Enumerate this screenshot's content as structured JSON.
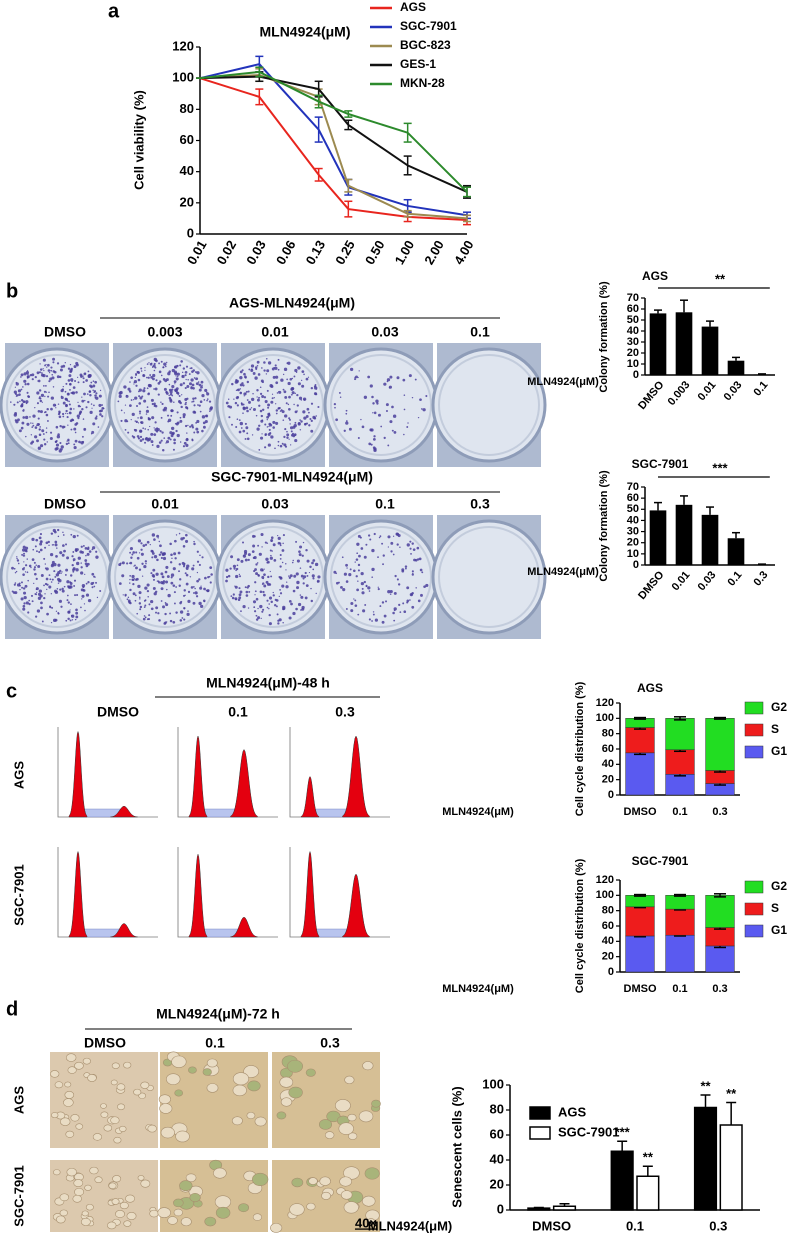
{
  "panel_labels": [
    "a",
    "b",
    "c",
    "d"
  ],
  "colony_assay": [
    {
      "title": "AGS-MLN4924(μM)",
      "doses": [
        "DMSO",
        "0.003",
        "0.01",
        "0.03",
        "0.1"
      ]
    },
    {
      "title": "SGC-7901-MLN4924(μM)",
      "doses": [
        "DMSO",
        "0.01",
        "0.03",
        "0.1",
        "0.3"
      ]
    }
  ],
  "flow_cytometry": {
    "title": "MLN4924(μM)-48 h",
    "doses": [
      "DMSO",
      "0.1",
      "0.3"
    ],
    "cell_lines": [
      "AGS",
      "SGC-7901"
    ]
  },
  "senescence_images": {
    "title": "MLN4924(μM)-72 h",
    "doses": [
      "DMSO",
      "0.1",
      "0.3"
    ],
    "cell_lines": [
      "AGS",
      "SGC-7901"
    ],
    "magnification": "40×"
  },
  "chart_data": [
    {
      "type": "line",
      "title": "MLN4924(μM)",
      "y_label": "Cell viability (%)",
      "categories": [
        "0.01",
        "0.02",
        "0.03",
        "0.06",
        "0.13",
        "0.25",
        "0.50",
        "1.00",
        "2.00",
        "4.00"
      ],
      "ylim": [
        0,
        120
      ],
      "yticks": [
        0,
        20,
        40,
        60,
        80,
        100,
        120
      ],
      "series": [
        {
          "name": "AGS",
          "color": "#e8251e",
          "x": [
            "0.01",
            "0.03",
            "0.13",
            "0.25",
            "1.00",
            "4.00"
          ],
          "values": [
            100,
            88,
            38,
            16,
            11,
            9
          ],
          "errors": [
            0,
            5,
            4,
            5,
            3,
            3
          ]
        },
        {
          "name": "SGC-7901",
          "color": "#2233bb",
          "x": [
            "0.01",
            "0.03",
            "0.13",
            "0.25",
            "1.00",
            "4.00"
          ],
          "values": [
            100,
            109,
            67,
            30,
            18,
            12
          ],
          "errors": [
            0,
            5,
            8,
            5,
            4,
            2
          ]
        },
        {
          "name": "BGC-823",
          "color": "#9c8a50",
          "x": [
            "0.01",
            "0.03",
            "0.13",
            "0.25",
            "1.00",
            "4.00"
          ],
          "values": [
            100,
            102,
            88,
            31,
            13,
            10
          ],
          "errors": [
            0,
            4,
            5,
            4,
            2,
            2
          ]
        },
        {
          "name": "GES-1",
          "color": "#111111",
          "x": [
            "0.01",
            "0.03",
            "0.13",
            "0.25",
            "1.00",
            "4.00"
          ],
          "values": [
            100,
            101,
            93,
            70,
            44,
            27
          ],
          "errors": [
            0,
            3,
            5,
            3,
            6,
            4
          ]
        },
        {
          "name": "MKN-28",
          "color": "#2c8a2c",
          "x": [
            "0.01",
            "0.03",
            "0.13",
            "0.25",
            "1.00",
            "4.00"
          ],
          "values": [
            100,
            104,
            85,
            77,
            65,
            27
          ],
          "errors": [
            0,
            3,
            4,
            2,
            6,
            3
          ]
        }
      ]
    },
    {
      "type": "bar",
      "title": "AGS",
      "y_label": "Colony formation (%)",
      "x_label": "MLN4924(μM)",
      "categories": [
        "DMSO",
        "0.003",
        "0.01",
        "0.03",
        "0.1"
      ],
      "values": [
        56,
        57,
        44,
        13,
        0.5
      ],
      "errors": [
        3,
        11,
        5,
        3,
        0.5
      ],
      "color": "#000000",
      "ylim": [
        0,
        70
      ],
      "yticks": [
        0,
        10,
        20,
        30,
        40,
        50,
        60,
        70
      ],
      "significance": "**"
    },
    {
      "type": "bar",
      "title": "SGC-7901",
      "y_label": "Colony formation (%)",
      "x_label": "MLN4924(μM)",
      "categories": [
        "DMSO",
        "0.01",
        "0.03",
        "0.1",
        "0.3"
      ],
      "values": [
        49,
        54,
        45,
        24,
        0.5
      ],
      "errors": [
        7,
        8,
        7,
        5,
        0.3
      ],
      "color": "#000000",
      "ylim": [
        0,
        70
      ],
      "yticks": [
        0,
        10,
        20,
        30,
        40,
        50,
        60,
        70
      ],
      "significance": "***"
    },
    {
      "type": "stacked_bar",
      "title": "AGS",
      "y_label": "Cell cycle distribution (%)",
      "x_label": "MLN4924(μM)",
      "categories": [
        "DMSO",
        "0.1",
        "0.3"
      ],
      "ylim": [
        0,
        120
      ],
      "yticks": [
        0,
        20,
        40,
        60,
        80,
        100,
        120
      ],
      "series": [
        {
          "name": "G1",
          "color": "#5a5af0",
          "values": [
            55,
            27,
            15
          ],
          "errors": [
            2,
            2,
            2
          ]
        },
        {
          "name": "S",
          "color": "#ee1c1c",
          "values": [
            33,
            32,
            17
          ],
          "errors": [
            2,
            2,
            2
          ]
        },
        {
          "name": "G2",
          "color": "#22dd22",
          "values": [
            12,
            41,
            68
          ],
          "errors": [
            1,
            2,
            1
          ]
        }
      ]
    },
    {
      "type": "stacked_bar",
      "title": "SGC-7901",
      "y_label": "Cell cycle distribution (%)",
      "x_label": "MLN4924(μM)",
      "categories": [
        "DMSO",
        "0.1",
        "0.3"
      ],
      "ylim": [
        0,
        120
      ],
      "yticks": [
        0,
        20,
        40,
        60,
        80,
        100,
        120
      ],
      "series": [
        {
          "name": "G1",
          "color": "#5a5af0",
          "values": [
            47,
            48,
            34
          ],
          "errors": [
            1,
            1,
            2
          ]
        },
        {
          "name": "S",
          "color": "#ee1c1c",
          "values": [
            38,
            34,
            24
          ],
          "errors": [
            1,
            1,
            2
          ]
        },
        {
          "name": "G2",
          "color": "#22dd22",
          "values": [
            15,
            18,
            42
          ],
          "errors": [
            1,
            1,
            2
          ]
        }
      ]
    },
    {
      "type": "grouped_bar",
      "y_label": "Senescent cells (%)",
      "x_label": "MLN4924(μM)",
      "categories": [
        "DMSO",
        "0.1",
        "0.3"
      ],
      "ylim": [
        0,
        100
      ],
      "yticks": [
        0,
        20,
        40,
        60,
        80,
        100
      ],
      "series": [
        {
          "name": "AGS",
          "color": "#000000",
          "values": [
            1.5,
            47,
            82
          ],
          "errors": [
            0.5,
            8,
            10
          ]
        },
        {
          "name": "SGC-7901",
          "color": "#ffffff",
          "values": [
            3,
            27,
            68
          ],
          "errors": [
            2,
            8,
            18
          ]
        }
      ],
      "annotations": [
        {
          "series": 0,
          "category": 1,
          "text": "***"
        },
        {
          "series": 0,
          "category": 2,
          "text": "**"
        },
        {
          "series": 1,
          "category": 1,
          "text": "**"
        },
        {
          "series": 1,
          "category": 2,
          "text": "**"
        }
      ]
    }
  ]
}
